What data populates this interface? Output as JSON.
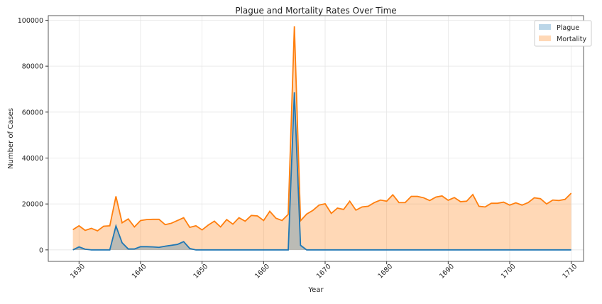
{
  "chart_data": {
    "type": "area",
    "title": "Plague and Mortality Rates Over Time",
    "xlabel": "Year",
    "ylabel": "Number of Cases",
    "xlim": [
      1625,
      1712
    ],
    "ylim": [
      -5000,
      102000
    ],
    "xticks": [
      1630,
      1640,
      1650,
      1660,
      1670,
      1680,
      1690,
      1700,
      1710
    ],
    "yticks": [
      0,
      20000,
      40000,
      60000,
      80000,
      100000
    ],
    "grid": true,
    "legend": "top-right",
    "x_start": 1629,
    "series": [
      {
        "name": "Plague",
        "color": "#1f77b4",
        "values": [
          0,
          1300,
          300,
          0,
          0,
          0,
          0,
          10400,
          3100,
          400,
          400,
          1400,
          1400,
          1300,
          1100,
          1600,
          2000,
          2400,
          3600,
          600,
          0,
          0,
          0,
          0,
          0,
          0,
          0,
          0,
          0,
          0,
          0,
          0,
          0,
          0,
          0,
          0,
          68600,
          2000,
          0,
          0,
          0,
          0,
          0,
          0,
          0,
          0,
          0,
          0,
          0,
          0,
          0,
          0,
          0,
          0,
          0,
          0,
          0,
          0,
          0,
          0,
          0,
          0,
          0,
          0,
          0,
          0,
          0,
          0,
          0,
          0,
          0,
          0,
          0,
          0,
          0,
          0,
          0,
          0,
          0,
          0,
          0,
          0
        ]
      },
      {
        "name": "Mortality",
        "color": "#ff7f0e",
        "values": [
          8800,
          10500,
          8500,
          9400,
          8300,
          10300,
          10500,
          23300,
          11800,
          13500,
          10000,
          12800,
          13200,
          13300,
          13300,
          11000,
          11600,
          12800,
          14000,
          9800,
          10500,
          8700,
          10800,
          12500,
          10000,
          13200,
          11200,
          14000,
          12500,
          15000,
          14800,
          12800,
          16800,
          13800,
          12800,
          15500,
          97300,
          12700,
          15600,
          17200,
          19500,
          20100,
          15900,
          18200,
          17600,
          21200,
          17300,
          18700,
          19000,
          20600,
          21700,
          21200,
          24000,
          20600,
          20600,
          23300,
          23300,
          22700,
          21500,
          23000,
          23500,
          21600,
          22800,
          21000,
          21200,
          24100,
          19000,
          18700,
          20300,
          20300,
          20800,
          19500,
          20500,
          19500,
          20600,
          22700,
          22300,
          20000,
          21700,
          21500,
          22000,
          24700
        ]
      }
    ]
  }
}
